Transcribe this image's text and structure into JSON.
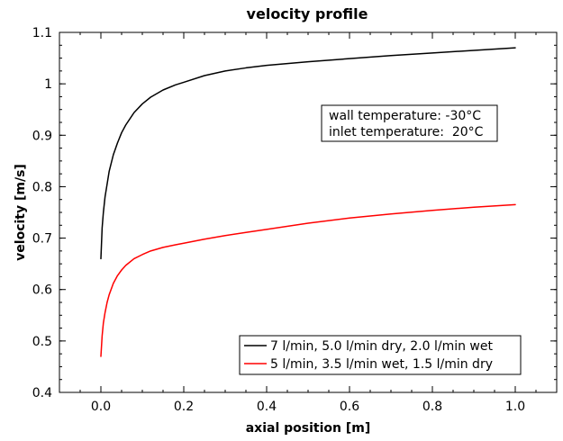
{
  "chart_data": {
    "type": "line",
    "title": "velocity profile",
    "xlabel": "axial position [m]",
    "ylabel": "velocity [m/s]",
    "xlim": [
      -0.1,
      1.1
    ],
    "ylim": [
      0.4,
      1.1
    ],
    "xticks": [
      0.0,
      0.2,
      0.4,
      0.6,
      0.8,
      1.0
    ],
    "xtick_labels": [
      "0.0",
      "0.2",
      "0.4",
      "0.6",
      "0.8",
      "1.0"
    ],
    "yticks": [
      0.4,
      0.5,
      0.6,
      0.7,
      0.8,
      0.9,
      1.0,
      1.1
    ],
    "ytick_labels": [
      "0.4",
      "0.5",
      "0.6",
      "0.7",
      "0.8",
      "0.9",
      "1",
      "1.1"
    ],
    "grid": false,
    "legend_position": "bottom-right",
    "annotations": [
      "wall temperature: -30°C",
      "inlet temperature:  20°C"
    ],
    "series": [
      {
        "name": "7 l/min, 5.0 l/min dry, 2.0 l/min wet",
        "color": "#000000",
        "x": [
          0.0,
          0.003,
          0.006,
          0.01,
          0.015,
          0.02,
          0.03,
          0.04,
          0.05,
          0.06,
          0.08,
          0.1,
          0.12,
          0.15,
          0.18,
          0.2,
          0.25,
          0.3,
          0.35,
          0.4,
          0.5,
          0.6,
          0.7,
          0.8,
          0.9,
          1.0
        ],
        "y": [
          0.66,
          0.72,
          0.75,
          0.78,
          0.805,
          0.83,
          0.862,
          0.885,
          0.905,
          0.92,
          0.944,
          0.961,
          0.974,
          0.988,
          0.998,
          1.003,
          1.016,
          1.025,
          1.031,
          1.036,
          1.043,
          1.049,
          1.055,
          1.06,
          1.065,
          1.07
        ]
      },
      {
        "name": "5 l/min, 3.5 l/min wet, 1.5 l/min dry",
        "color": "#ff0000",
        "x": [
          0.0,
          0.003,
          0.006,
          0.01,
          0.015,
          0.02,
          0.03,
          0.04,
          0.05,
          0.06,
          0.08,
          0.1,
          0.12,
          0.15,
          0.18,
          0.2,
          0.25,
          0.3,
          0.35,
          0.4,
          0.5,
          0.6,
          0.7,
          0.8,
          0.9,
          1.0
        ],
        "y": [
          0.47,
          0.51,
          0.535,
          0.555,
          0.575,
          0.59,
          0.612,
          0.627,
          0.638,
          0.647,
          0.66,
          0.668,
          0.675,
          0.682,
          0.687,
          0.69,
          0.698,
          0.705,
          0.711,
          0.717,
          0.729,
          0.739,
          0.747,
          0.754,
          0.76,
          0.765
        ]
      }
    ]
  }
}
